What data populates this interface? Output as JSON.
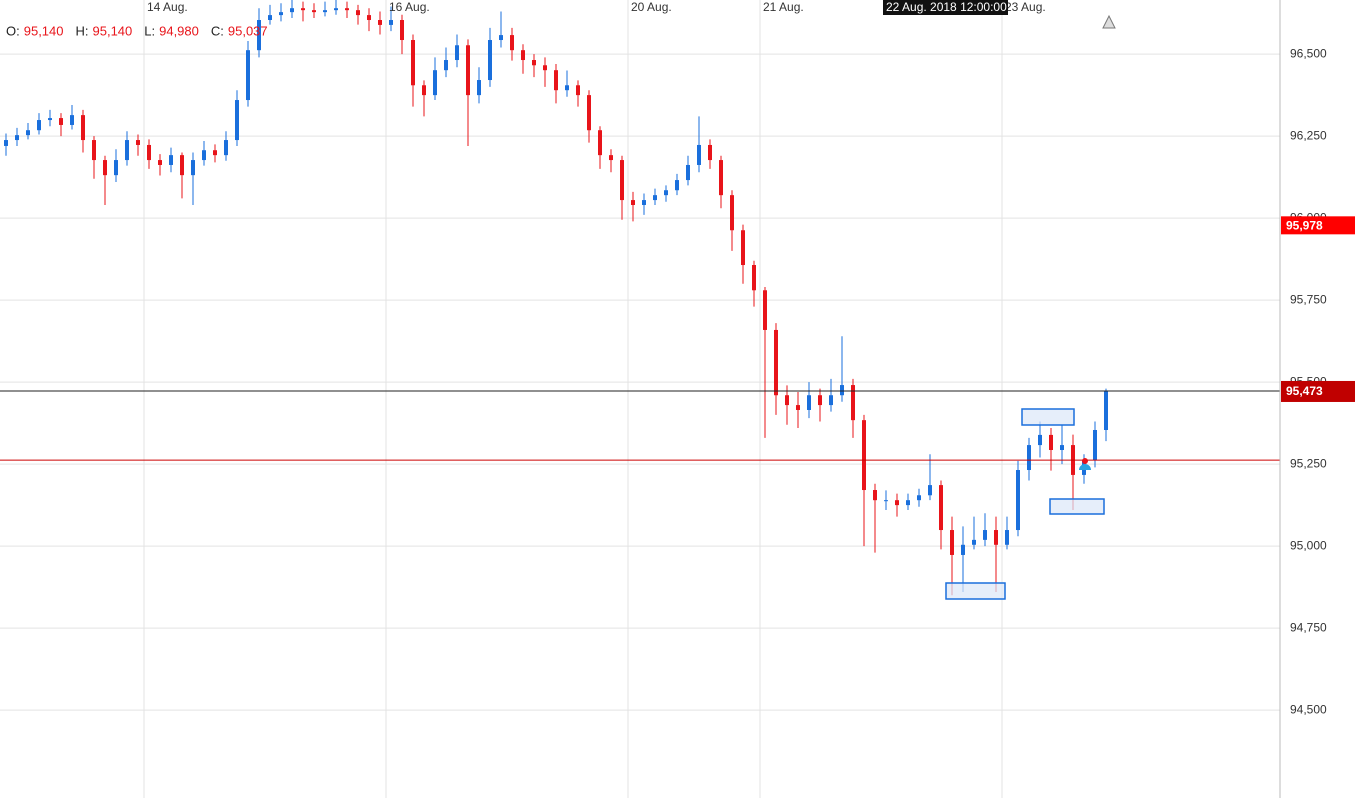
{
  "chart_data": {
    "type": "candlestick",
    "categories": [
      null,
      null,
      null,
      null,
      null,
      null,
      null,
      null,
      null,
      null,
      null,
      null,
      null,
      "14 Aug.",
      null,
      null,
      null,
      null,
      null,
      null,
      null,
      null,
      null,
      null,
      null,
      null,
      null,
      null,
      null,
      null,
      null,
      null,
      null,
      null,
      null,
      "16 Aug.",
      null,
      null,
      null,
      null,
      null,
      null,
      null,
      null,
      null,
      null,
      null,
      null,
      null,
      null,
      null,
      null,
      null,
      null,
      null,
      null,
      null,
      "20 Aug.",
      null,
      null,
      null,
      null,
      null,
      null,
      null,
      null,
      null,
      null,
      null,
      "21 Aug.",
      null,
      null,
      null,
      null,
      null,
      null,
      null,
      null,
      null,
      null,
      null,
      null,
      null,
      null,
      null,
      null,
      null,
      null,
      null,
      null,
      null,
      "23 Aug.",
      null,
      null,
      null,
      null,
      null,
      null,
      null,
      null,
      null
    ],
    "open": [
      96220,
      96238,
      96253,
      96268,
      96299,
      96305,
      96284,
      96314,
      96238,
      96177,
      96131,
      96177,
      96238,
      96223,
      96177,
      96162,
      96192,
      96131,
      96177,
      96207,
      96192,
      96238,
      96360,
      96512,
      96604,
      96619,
      96628,
      96640,
      96634,
      96628,
      96634,
      96640,
      96634,
      96619,
      96604,
      96589,
      96604,
      96543,
      96405,
      96375,
      96451,
      96482,
      96527,
      96375,
      96421,
      96543,
      96558,
      96512,
      96482,
      96466,
      96451,
      96390,
      96405,
      96375,
      96268,
      96192,
      96177,
      96055,
      96040,
      96055,
      96070,
      96085,
      96116,
      96162,
      96223,
      96177,
      96070,
      95963,
      95857,
      95780,
      95659,
      95460,
      95430,
      95415,
      95460,
      95430,
      95460,
      95491,
      95384,
      95171,
      95140,
      95140,
      95125,
      95140,
      95155,
      95186,
      95049,
      94973,
      95004,
      95019,
      95049,
      95004,
      95049,
      95232,
      95308,
      95339,
      95293,
      95308,
      95217,
      95262,
      95354
    ],
    "high": [
      96258,
      96275,
      96290,
      96320,
      96330,
      96320,
      96345,
      96330,
      96250,
      96190,
      96210,
      96265,
      96255,
      96240,
      96195,
      96215,
      96200,
      96200,
      96235,
      96225,
      96265,
      96390,
      96540,
      96640,
      96650,
      96655,
      96665,
      96660,
      96655,
      96660,
      96665,
      96660,
      96650,
      96640,
      96630,
      96645,
      96620,
      96560,
      96420,
      96490,
      96520,
      96560,
      96545,
      96460,
      96580,
      96630,
      96580,
      96530,
      96500,
      96490,
      96470,
      96450,
      96420,
      96390,
      96280,
      96210,
      96190,
      96080,
      96075,
      96090,
      96100,
      96135,
      96190,
      96310,
      96240,
      96190,
      96085,
      95980,
      95870,
      95790,
      95680,
      95490,
      95470,
      95500,
      95480,
      95510,
      95640,
      95510,
      95400,
      95190,
      95170,
      95160,
      95160,
      95175,
      95280,
      95200,
      95090,
      95060,
      95090,
      95100,
      95090,
      95090,
      95260,
      95330,
      95380,
      95360,
      95370,
      95340,
      95280,
      95380,
      95480
    ],
    "low": [
      96190,
      96220,
      96240,
      96255,
      96280,
      96250,
      96270,
      96200,
      96120,
      96040,
      96110,
      96160,
      96190,
      96150,
      96130,
      96140,
      96060,
      96040,
      96160,
      96170,
      96175,
      96220,
      96340,
      96490,
      96590,
      96600,
      96610,
      96600,
      96610,
      96615,
      96620,
      96610,
      96590,
      96570,
      96560,
      96570,
      96500,
      96340,
      96310,
      96360,
      96430,
      96460,
      96220,
      96350,
      96400,
      96520,
      96480,
      96440,
      96430,
      96400,
      96350,
      96370,
      96340,
      96230,
      96150,
      96140,
      95995,
      95990,
      96010,
      96040,
      96050,
      96070,
      96100,
      96140,
      96150,
      96030,
      95900,
      95800,
      95730,
      95330,
      95400,
      95370,
      95360,
      95390,
      95380,
      95410,
      95440,
      95330,
      95000,
      94980,
      95110,
      95090,
      95110,
      95120,
      95140,
      94990,
      94850,
      94860,
      94990,
      95000,
      94860,
      94990,
      95030,
      95200,
      95270,
      95230,
      95250,
      95110,
      95190,
      95240,
      95320
    ],
    "close": [
      96238,
      96253,
      96268,
      96299,
      96305,
      96284,
      96314,
      96238,
      96177,
      96131,
      96177,
      96238,
      96223,
      96177,
      96162,
      96192,
      96131,
      96177,
      96207,
      96192,
      96238,
      96360,
      96512,
      96604,
      96619,
      96628,
      96640,
      96634,
      96628,
      96634,
      96640,
      96634,
      96619,
      96604,
      96589,
      96604,
      96543,
      96405,
      96375,
      96451,
      96482,
      96527,
      96375,
      96421,
      96543,
      96558,
      96512,
      96482,
      96466,
      96451,
      96390,
      96405,
      96375,
      96268,
      96192,
      96177,
      96055,
      96040,
      96055,
      96070,
      96085,
      96116,
      96162,
      96223,
      96177,
      96070,
      95963,
      95857,
      95780,
      95659,
      95460,
      95430,
      95415,
      95460,
      95430,
      95460,
      95491,
      95384,
      95171,
      95140,
      95140,
      95125,
      95140,
      95155,
      95186,
      95049,
      94973,
      95004,
      95019,
      95049,
      95004,
      95049,
      95232,
      95308,
      95339,
      95293,
      95308,
      95217,
      95262,
      95354,
      95473
    ],
    "up_color": "#1a6fdc",
    "down_color": "#e8141a",
    "ylim": [
      94232,
      96665
    ],
    "yticks": [
      {
        "value": 94500,
        "label": "94,500"
      },
      {
        "value": 94750,
        "label": "94,750"
      },
      {
        "value": 95000,
        "label": "95,000"
      },
      {
        "value": 95250,
        "label": "95,250"
      },
      {
        "value": 95500,
        "label": "95,500"
      },
      {
        "value": 95750,
        "label": "95,750"
      },
      {
        "value": 96000,
        "label": "96,000"
      },
      {
        "value": 96250,
        "label": "96,250"
      },
      {
        "value": 96500,
        "label": "96,500"
      }
    ],
    "grid": true,
    "crosshair_label": "22 Aug. 2018 12:00:00",
    "ohlc_info": [
      {
        "label": "O:",
        "value": "95,140"
      },
      {
        "label": "H:",
        "value": "95,140"
      },
      {
        "label": "L:",
        "value": "94,980"
      },
      {
        "label": "C:",
        "value": "95,037"
      }
    ],
    "last_price": {
      "value": 95473,
      "label": "95,473",
      "color": "#c00000"
    },
    "alert_price": {
      "value": 95978,
      "label": "95,978",
      "color": "#ff0000"
    },
    "reference_line": {
      "value": 95262,
      "color": "#cc0000"
    }
  }
}
